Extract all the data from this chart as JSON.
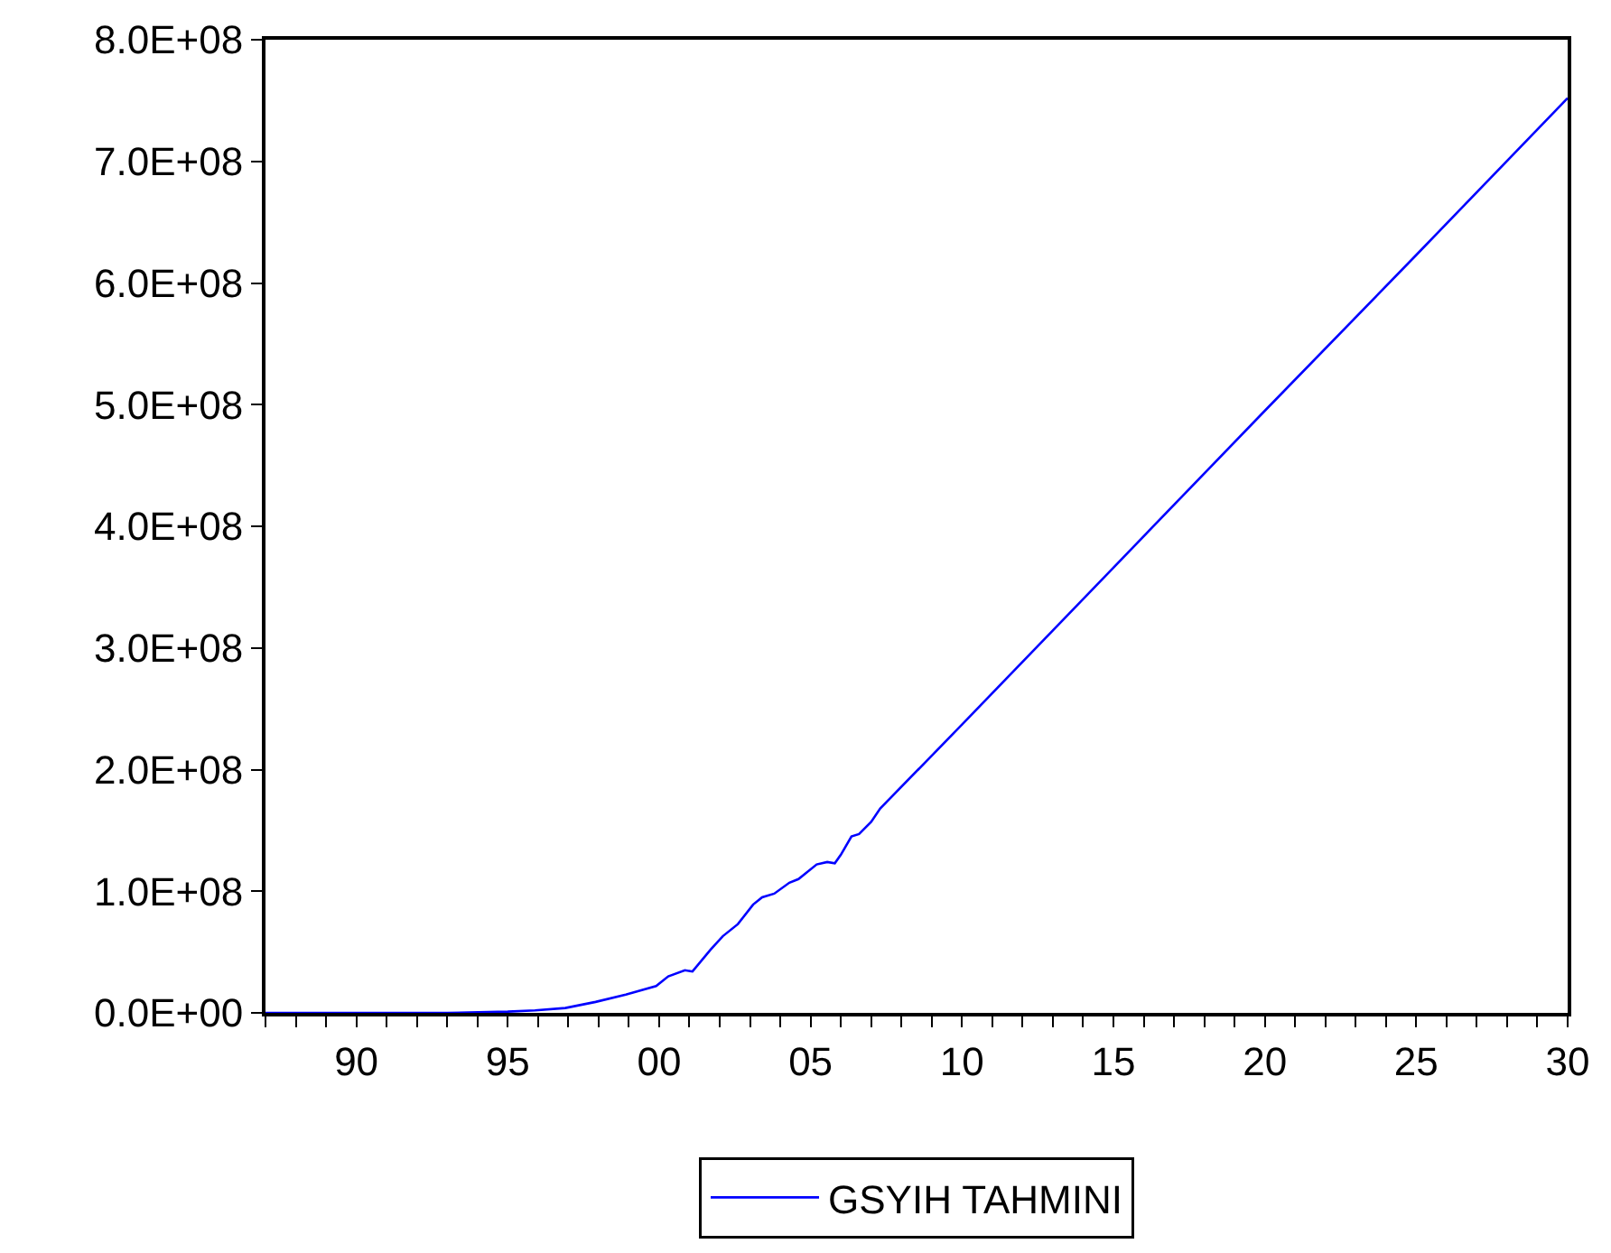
{
  "chart_data": {
    "type": "line",
    "series": [
      {
        "name": "GSYIH TAHMINI",
        "color": "#0000ff",
        "x": [
          1987,
          1990,
          1993,
          1995,
          1995.9,
          1996.9,
          1997.9,
          1998.9,
          1999.9,
          2000.3,
          2000.85,
          2001.1,
          2001.7,
          2002.1,
          2002.6,
          2003.1,
          2003.4,
          2003.8,
          2004.3,
          2004.6,
          2005.2,
          2005.55,
          2005.8,
          2006.0,
          2006.35,
          2006.6,
          2007.0,
          2007.3,
          2010,
          2015,
          2020,
          2025,
          2030
        ],
        "values": [
          0,
          0,
          0,
          1000000,
          2000000,
          4000000,
          9000000,
          15000000,
          22000000,
          30000000,
          35000000,
          34000000,
          52000000,
          63000000,
          73000000,
          89000000,
          95000000,
          98000000,
          107000000,
          110000000,
          122000000,
          124000000,
          123000000,
          130000000,
          145000000,
          147000000,
          157000000,
          168000000,
          237000000,
          366000000,
          495000000,
          623000000,
          752000000
        ]
      }
    ],
    "xlim": [
      1987,
      2030
    ],
    "xticks": [
      {
        "value": 1987,
        "label": null
      },
      {
        "value": 1988,
        "label": null
      },
      {
        "value": 1989,
        "label": null
      },
      {
        "value": 1990,
        "label": "90"
      },
      {
        "value": 1991,
        "label": null
      },
      {
        "value": 1992,
        "label": null
      },
      {
        "value": 1993,
        "label": null
      },
      {
        "value": 1994,
        "label": null
      },
      {
        "value": 1995,
        "label": "95"
      },
      {
        "value": 1996,
        "label": null
      },
      {
        "value": 1997,
        "label": null
      },
      {
        "value": 1998,
        "label": null
      },
      {
        "value": 1999,
        "label": null
      },
      {
        "value": 2000,
        "label": "00"
      },
      {
        "value": 2001,
        "label": null
      },
      {
        "value": 2002,
        "label": null
      },
      {
        "value": 2003,
        "label": null
      },
      {
        "value": 2004,
        "label": null
      },
      {
        "value": 2005,
        "label": "05"
      },
      {
        "value": 2006,
        "label": null
      },
      {
        "value": 2007,
        "label": null
      },
      {
        "value": 2008,
        "label": null
      },
      {
        "value": 2009,
        "label": null
      },
      {
        "value": 2010,
        "label": "10"
      },
      {
        "value": 2011,
        "label": null
      },
      {
        "value": 2012,
        "label": null
      },
      {
        "value": 2013,
        "label": null
      },
      {
        "value": 2014,
        "label": null
      },
      {
        "value": 2015,
        "label": "15"
      },
      {
        "value": 2016,
        "label": null
      },
      {
        "value": 2017,
        "label": null
      },
      {
        "value": 2018,
        "label": null
      },
      {
        "value": 2019,
        "label": null
      },
      {
        "value": 2020,
        "label": "20"
      },
      {
        "value": 2021,
        "label": null
      },
      {
        "value": 2022,
        "label": null
      },
      {
        "value": 2023,
        "label": null
      },
      {
        "value": 2024,
        "label": null
      },
      {
        "value": 2025,
        "label": "25"
      },
      {
        "value": 2026,
        "label": null
      },
      {
        "value": 2027,
        "label": null
      },
      {
        "value": 2028,
        "label": null
      },
      {
        "value": 2029,
        "label": null
      },
      {
        "value": 2030,
        "label": "30"
      }
    ],
    "ylim": [
      0,
      800000000
    ],
    "yticks": [
      {
        "value": 0,
        "label": "0.0E+00"
      },
      {
        "value": 100000000,
        "label": "1.0E+08"
      },
      {
        "value": 200000000,
        "label": "2.0E+08"
      },
      {
        "value": 300000000,
        "label": "3.0E+08"
      },
      {
        "value": 400000000,
        "label": "4.0E+08"
      },
      {
        "value": 500000000,
        "label": "5.0E+08"
      },
      {
        "value": 600000000,
        "label": "6.0E+08"
      },
      {
        "value": 700000000,
        "label": "7.0E+08"
      },
      {
        "value": 800000000,
        "label": "8.0E+08"
      }
    ],
    "legend": "bottom",
    "marker": "none",
    "line_style": "solid"
  }
}
